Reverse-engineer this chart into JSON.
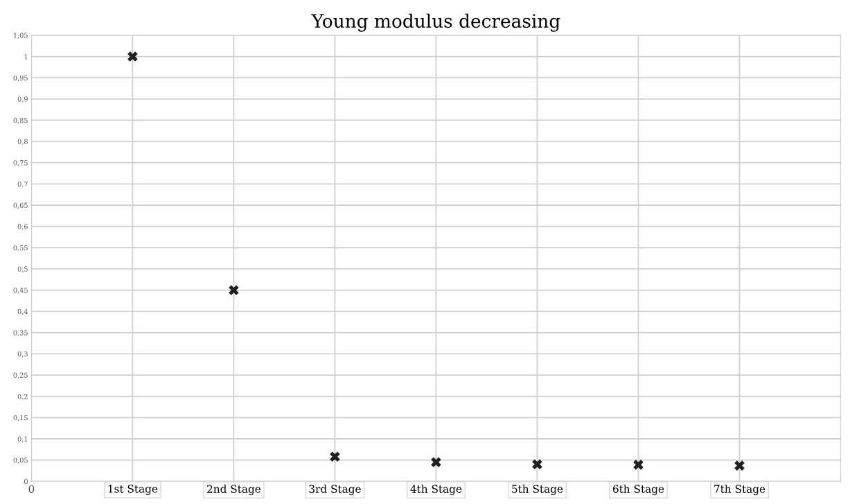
{
  "chart_data": {
    "type": "scatter",
    "title": "Young modulus decreasing",
    "x": [
      1,
      2,
      3,
      4,
      5,
      6,
      7
    ],
    "series": [
      {
        "color": "#1f1f1f",
        "values": [
          1,
          0.45,
          0.058,
          0.045,
          0.04,
          0.039,
          0.037
        ]
      }
    ],
    "marker": "cross",
    "grid": true,
    "legend": false,
    "xlim": [
      0,
      8
    ],
    "xticks": [
      0,
      {
        "value": 1,
        "label": "1st Stage"
      },
      {
        "value": 2,
        "label": "2nd Stage"
      },
      {
        "value": 3,
        "label": "3rd Stage"
      },
      {
        "value": 4,
        "label": "4th Stage"
      },
      {
        "value": 5,
        "label": "5th Stage"
      },
      {
        "value": 6,
        "label": "6th Stage"
      },
      {
        "value": 7,
        "label": "7th Stage"
      }
    ],
    "ylim": [
      0,
      1.05
    ],
    "yticks": [
      0,
      {
        "value": 0.05,
        "label": "0,05"
      },
      {
        "value": 0.1,
        "label": "0,1"
      },
      {
        "value": 0.15,
        "label": "0,15"
      },
      {
        "value": 0.2,
        "label": "0,2"
      },
      {
        "value": 0.25,
        "label": "0,25"
      },
      {
        "value": 0.3,
        "label": "0,3"
      },
      {
        "value": 0.35,
        "label": "0,35"
      },
      {
        "value": 0.4,
        "label": "0,4"
      },
      {
        "value": 0.45,
        "label": "0,45"
      },
      {
        "value": 0.5,
        "label": "0,5"
      },
      {
        "value": 0.55,
        "label": "0,55"
      },
      {
        "value": 0.6,
        "label": "0,6"
      },
      {
        "value": 0.65,
        "label": "0,65"
      },
      {
        "value": 0.7,
        "label": "0,7"
      },
      {
        "value": 0.75,
        "label": "0,75"
      },
      {
        "value": 0.8,
        "label": "0,8"
      },
      {
        "value": 0.85,
        "label": "0,85"
      },
      {
        "value": 0.9,
        "label": "0,9"
      },
      {
        "value": 0.95,
        "label": "0,95"
      },
      {
        "value": 1,
        "label": "1"
      },
      {
        "value": 1.05,
        "label": "1,05"
      }
    ]
  }
}
